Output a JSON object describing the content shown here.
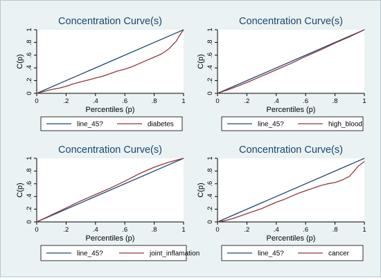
{
  "colors": {
    "background": "#eaf2f3",
    "plot_background": "#ffffff",
    "line_45": "#1a476f",
    "series_line": "#90353b",
    "title": "#1a476f",
    "axis": "#000000"
  },
  "chart_data": [
    {
      "type": "line",
      "title": "Concentration Curve(s)",
      "xlabel": "Percentiles (p)",
      "ylabel": "C(p)",
      "xlim": [
        0,
        1
      ],
      "ylim": [
        0,
        1
      ],
      "x_ticks": [
        "0",
        ".2",
        ".4",
        ".6",
        ".8",
        "1"
      ],
      "y_ticks": [
        "0",
        ".2",
        ".4",
        ".6",
        ".8",
        "1"
      ],
      "legend_position": "bottom",
      "series": [
        {
          "name": "line_45?",
          "x": [
            0,
            1
          ],
          "y": [
            0,
            1
          ]
        },
        {
          "name": "diabetes",
          "x": [
            0,
            0.05,
            0.1,
            0.15,
            0.2,
            0.25,
            0.3,
            0.35,
            0.4,
            0.45,
            0.5,
            0.55,
            0.6,
            0.65,
            0.7,
            0.75,
            0.8,
            0.85,
            0.9,
            0.95,
            0.97,
            1.0
          ],
          "y": [
            0,
            0.03,
            0.06,
            0.08,
            0.11,
            0.15,
            0.18,
            0.21,
            0.24,
            0.27,
            0.31,
            0.35,
            0.38,
            0.42,
            0.47,
            0.52,
            0.57,
            0.62,
            0.7,
            0.82,
            0.9,
            1.0
          ]
        }
      ]
    },
    {
      "type": "line",
      "title": "Concentration Curve(s)",
      "xlabel": "Percentiles (p)",
      "ylabel": "C(p)",
      "xlim": [
        0,
        1
      ],
      "ylim": [
        0,
        1
      ],
      "x_ticks": [
        "0",
        ".2",
        ".4",
        ".6",
        ".8",
        "1"
      ],
      "y_ticks": [
        "0",
        ".2",
        ".4",
        ".6",
        ".8",
        "1"
      ],
      "legend_position": "bottom",
      "series": [
        {
          "name": "line_45?",
          "x": [
            0,
            1
          ],
          "y": [
            0,
            1
          ]
        },
        {
          "name": "high_blood",
          "x": [
            0,
            0.1,
            0.2,
            0.3,
            0.4,
            0.5,
            0.6,
            0.7,
            0.8,
            0.9,
            1.0
          ],
          "y": [
            0,
            0.08,
            0.17,
            0.27,
            0.37,
            0.47,
            0.58,
            0.68,
            0.79,
            0.89,
            1.0
          ]
        }
      ]
    },
    {
      "type": "line",
      "title": "Concentration Curve(s)",
      "xlabel": "Percentiles (p)",
      "ylabel": "C(p)",
      "xlim": [
        0,
        1
      ],
      "ylim": [
        0,
        1
      ],
      "x_ticks": [
        "0",
        ".2",
        ".4",
        ".6",
        ".8",
        "1"
      ],
      "y_ticks": [
        "0",
        ".2",
        ".4",
        ".6",
        ".8",
        "1"
      ],
      "legend_position": "bottom",
      "series": [
        {
          "name": "line_45?",
          "x": [
            0,
            1
          ],
          "y": [
            0,
            1
          ]
        },
        {
          "name": "joint_inflamation",
          "x": [
            0,
            0.1,
            0.2,
            0.3,
            0.4,
            0.5,
            0.6,
            0.7,
            0.8,
            0.9,
            1.0
          ],
          "y": [
            0,
            0.11,
            0.22,
            0.33,
            0.43,
            0.53,
            0.64,
            0.76,
            0.86,
            0.94,
            1.0
          ]
        }
      ]
    },
    {
      "type": "line",
      "title": "Concentration Curve(s)",
      "xlabel": "Percentiles (p)",
      "ylabel": "C(p)",
      "xlim": [
        0,
        1
      ],
      "ylim": [
        0,
        1
      ],
      "x_ticks": [
        "0",
        ".2",
        ".4",
        ".6",
        ".8",
        "1"
      ],
      "y_ticks": [
        "0",
        ".2",
        ".4",
        ".6",
        ".8",
        "1"
      ],
      "legend_position": "bottom",
      "series": [
        {
          "name": "line_45?",
          "x": [
            0,
            1
          ],
          "y": [
            0,
            1
          ]
        },
        {
          "name": "cancer",
          "x": [
            0,
            0.05,
            0.1,
            0.15,
            0.2,
            0.25,
            0.3,
            0.35,
            0.4,
            0.45,
            0.5,
            0.55,
            0.6,
            0.65,
            0.7,
            0.75,
            0.8,
            0.85,
            0.9,
            0.93,
            0.96,
            1.0
          ],
          "y": [
            0,
            0.02,
            0.05,
            0.09,
            0.13,
            0.17,
            0.21,
            0.26,
            0.31,
            0.35,
            0.4,
            0.45,
            0.49,
            0.53,
            0.57,
            0.6,
            0.62,
            0.66,
            0.72,
            0.8,
            0.88,
            0.95
          ]
        }
      ]
    }
  ]
}
